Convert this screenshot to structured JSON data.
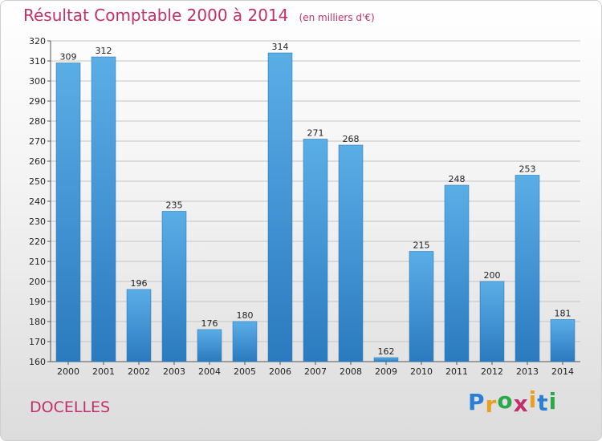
{
  "header": {
    "title": "Résultat Comptable 2000 à 2014",
    "subtitle": "(en milliers d'€)"
  },
  "footer": {
    "city": "DOCELLES",
    "logo_letters": [
      "P",
      "r",
      "o",
      "x",
      "i",
      "t",
      "i"
    ],
    "logo_colors": [
      "#2a7fd4",
      "#e8a020",
      "#2ba84a",
      "#c0306a",
      "#e8a020",
      "#2a7fd4",
      "#2ba84a"
    ]
  },
  "colors": {
    "bar_top": "#5aaee6",
    "bar_bottom": "#2a7abf",
    "grid": "#c4c4c4",
    "text_accent": "#c0306a"
  },
  "chart_data": {
    "type": "bar",
    "title": "Résultat Comptable 2000 à 2014",
    "ylabel": "(en milliers d'€)",
    "xlabel": "",
    "categories": [
      "2000",
      "2001",
      "2002",
      "2003",
      "2004",
      "2005",
      "2006",
      "2007",
      "2008",
      "2009",
      "2010",
      "2011",
      "2012",
      "2013",
      "2014"
    ],
    "values": [
      309,
      312,
      196,
      235,
      176,
      180,
      314,
      271,
      268,
      162,
      215,
      248,
      200,
      253,
      181
    ],
    "ylim": [
      160,
      320
    ],
    "ytick_step": 10,
    "grid": true,
    "show_value_labels": true
  }
}
